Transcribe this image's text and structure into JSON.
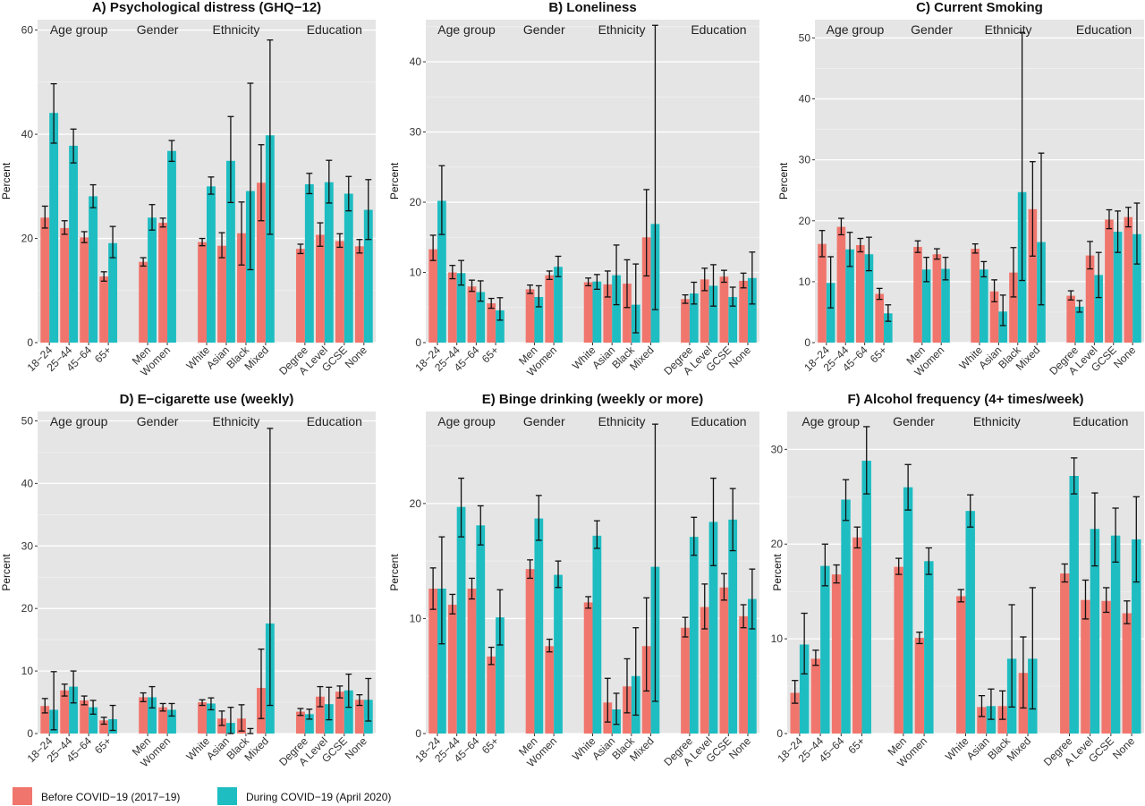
{
  "legend": [
    {
      "label": "Before COVID−19 (2017−19)",
      "color": "#F0766D"
    },
    {
      "label": "During COVID−19 (April 2020)",
      "color": "#1EBDC2"
    }
  ],
  "chart_data": [
    {
      "type": "bar",
      "title": "A) Psychological distress (GHQ−12)",
      "ylabel": "Percent",
      "ylim": [
        0,
        62
      ],
      "yticks": [
        0,
        20,
        40,
        60
      ],
      "groups": [
        {
          "label": "Age group",
          "categories": [
            "18−24",
            "25−44",
            "45−64",
            "65+"
          ]
        },
        {
          "label": "Gender",
          "categories": [
            "Men",
            "Women"
          ]
        },
        {
          "label": "Ethnicity",
          "categories": [
            "White",
            "Asian",
            "Black",
            "Mixed"
          ]
        },
        {
          "label": "Education",
          "categories": [
            "Degree",
            "A Level",
            "GCSE",
            "None"
          ]
        }
      ],
      "series": [
        {
          "name": "Before COVID−19 (2017−19)",
          "values": [
            24,
            22,
            20.2,
            12.7,
            15.5,
            23,
            19.3,
            18.6,
            21,
            30.7,
            18,
            20.7,
            19.5,
            18.5
          ],
          "lower": [
            22,
            20.8,
            19.2,
            11.8,
            14.7,
            22.2,
            18.6,
            16.3,
            14.9,
            23.4,
            17.1,
            18.5,
            18.3,
            17.2
          ],
          "upper": [
            26.2,
            23.4,
            21.3,
            13.6,
            16.3,
            23.9,
            20,
            21.1,
            27,
            38,
            18.9,
            23,
            20.9,
            19.8
          ]
        },
        {
          "name": "During COVID−19 (April 2020)",
          "values": [
            44.1,
            37.8,
            28.1,
            19.1,
            24,
            36.8,
            30,
            34.9,
            29.1,
            39.8,
            30.4,
            30.8,
            28.6,
            25.5
          ],
          "lower": [
            38.3,
            34.5,
            25.9,
            16.3,
            21.6,
            34.8,
            28.5,
            26.9,
            14,
            20.8,
            28.6,
            26.8,
            25.3,
            19.8
          ],
          "upper": [
            49.7,
            41,
            30.3,
            22.3,
            26.5,
            38.8,
            31.8,
            43.4,
            49.8,
            58.1,
            32.5,
            35,
            31.9,
            31.3
          ]
        }
      ]
    },
    {
      "type": "bar",
      "title": "B) Loneliness",
      "ylabel": "Percent",
      "ylim": [
        0,
        46
      ],
      "yticks": [
        0,
        10,
        20,
        30,
        40
      ],
      "groups": [
        {
          "label": "Age group",
          "categories": [
            "18−24",
            "25−44",
            "45−64",
            "65+"
          ]
        },
        {
          "label": "Gender",
          "categories": [
            "Men",
            "Women"
          ]
        },
        {
          "label": "Ethnicity",
          "categories": [
            "White",
            "Asian",
            "Black",
            "Mixed"
          ]
        },
        {
          "label": "Education",
          "categories": [
            "Degree",
            "A Level",
            "GCSE",
            "None"
          ]
        }
      ],
      "series": [
        {
          "name": "Before COVID−19 (2017−19)",
          "values": [
            13.3,
            10,
            8,
            5.6,
            7.6,
            9.6,
            8.6,
            8.3,
            8.4,
            15,
            6.2,
            9,
            9.4,
            8.8
          ],
          "lower": [
            11.7,
            9.1,
            7.3,
            4.9,
            7,
            9,
            8.1,
            6.5,
            5,
            9.5,
            5.6,
            7.4,
            8.6,
            7.8
          ],
          "upper": [
            15.3,
            11,
            8.9,
            6.3,
            8.2,
            10.2,
            9.2,
            10.2,
            11.8,
            21.8,
            6.8,
            10.6,
            10.3,
            9.9
          ]
        },
        {
          "name": "During COVID−19 (April 2020)",
          "values": [
            20.2,
            9.9,
            7.2,
            4.6,
            6.5,
            10.8,
            8.7,
            9.6,
            5.4,
            16.9,
            7,
            8.1,
            6.5,
            9.2
          ],
          "lower": [
            15.4,
            8.2,
            5.9,
            3.2,
            5.1,
            9.4,
            7.6,
            5.4,
            1.4,
            4.7,
            5.5,
            5.2,
            5.2,
            5.5
          ],
          "upper": [
            25.2,
            11.7,
            8.8,
            6.4,
            8.1,
            12.3,
            9.7,
            13.9,
            11.2,
            45.2,
            8.6,
            11.1,
            7.9,
            12.9
          ]
        }
      ]
    },
    {
      "type": "bar",
      "title": "C) Current Smoking",
      "ylabel": "Percent",
      "ylim": [
        0,
        53
      ],
      "yticks": [
        0,
        10,
        20,
        30,
        40,
        50
      ],
      "groups": [
        {
          "label": "Age group",
          "categories": [
            "18−24",
            "25−44",
            "45−64",
            "65+"
          ]
        },
        {
          "label": "Gender",
          "categories": [
            "Men",
            "Women"
          ]
        },
        {
          "label": "Ethnicity",
          "categories": [
            "White",
            "Asian",
            "Black",
            "Mixed"
          ]
        },
        {
          "label": "Education",
          "categories": [
            "Degree",
            "A Level",
            "GCSE",
            "None"
          ]
        }
      ],
      "series": [
        {
          "name": "Before COVID−19 (2017−19)",
          "values": [
            16.2,
            19,
            16,
            8,
            15.7,
            14.5,
            15.4,
            8.4,
            11.5,
            21.9,
            7.7,
            14.3,
            20.2,
            20.6
          ],
          "lower": [
            14.1,
            17.7,
            14.9,
            7.1,
            14.8,
            13.7,
            14.7,
            6.7,
            7.5,
            14.2,
            7,
            12.1,
            18.7,
            19
          ],
          "upper": [
            18.4,
            20.4,
            17.1,
            8.9,
            16.7,
            15.4,
            16.2,
            10.3,
            15.6,
            29.7,
            8.5,
            16.6,
            21.8,
            22.2
          ]
        },
        {
          "name": "During COVID−19 (April 2020)",
          "values": [
            9.8,
            15.3,
            14.5,
            4.8,
            12,
            12.1,
            12,
            5.1,
            24.7,
            16.5,
            5.9,
            11.1,
            18.2,
            17.8
          ],
          "lower": [
            5.7,
            12.5,
            11.8,
            3.5,
            10,
            10.3,
            10.8,
            2.8,
            10.2,
            6.2,
            5,
            7.4,
            14.8,
            12.9
          ],
          "upper": [
            14.1,
            18.1,
            17.3,
            6.2,
            14,
            14,
            13.3,
            7.8,
            50.9,
            31.1,
            6.9,
            14.8,
            21.6,
            22.9
          ]
        }
      ]
    },
    {
      "type": "bar",
      "title": "D) E−cigarette use (weekly)",
      "ylabel": "Percent",
      "ylim": [
        0,
        51.5
      ],
      "yticks": [
        0,
        10,
        20,
        30,
        40,
        50
      ],
      "groups": [
        {
          "label": "Age group",
          "categories": [
            "18−24",
            "25−44",
            "45−64",
            "65+"
          ]
        },
        {
          "label": "Gender",
          "categories": [
            "Men",
            "Women"
          ]
        },
        {
          "label": "Ethnicity",
          "categories": [
            "White",
            "Asian",
            "Black",
            "Mixed"
          ]
        },
        {
          "label": "Education",
          "categories": [
            "Degree",
            "A Level",
            "GCSE",
            "None"
          ]
        }
      ],
      "series": [
        {
          "name": "Before COVID−19 (2017−19)",
          "values": [
            4.4,
            6.9,
            5.3,
            2.1,
            5.8,
            4.2,
            5,
            2.4,
            2.4,
            7.3,
            3.5,
            5.9,
            6.7,
            5.4
          ],
          "lower": [
            3.3,
            6,
            4.6,
            1.5,
            5.1,
            3.6,
            4.5,
            1.3,
            0.4,
            2.4,
            2.9,
            4.3,
            5.7,
            4.5
          ],
          "upper": [
            5.6,
            7.9,
            6,
            2.6,
            6.5,
            4.8,
            5.4,
            3.6,
            4.6,
            13.5,
            4,
            7.5,
            7.6,
            6.2
          ]
        },
        {
          "name": "During COVID−19 (April 2020)",
          "values": [
            3.8,
            7.5,
            4.2,
            2.3,
            5.8,
            3.8,
            4.8,
            1.7,
            0,
            17.6,
            3.1,
            4.7,
            6.9,
            5.4
          ],
          "lower": [
            0.6,
            4.9,
            3.1,
            0.5,
            4.1,
            2.8,
            3.8,
            0,
            0,
            4.5,
            2.3,
            2.2,
            4.2,
            2
          ],
          "upper": [
            9.9,
            10,
            5.3,
            4.5,
            7.5,
            4.8,
            5.7,
            4.2,
            0.8,
            48.8,
            3.9,
            7.4,
            9.5,
            8.8
          ]
        }
      ]
    },
    {
      "type": "bar",
      "title": "E) Binge drinking (weekly or more)",
      "ylabel": "Percent",
      "ylim": [
        0,
        28
      ],
      "yticks": [
        0,
        10,
        20
      ],
      "groups": [
        {
          "label": "Age group",
          "categories": [
            "18−24",
            "25−44",
            "45−64",
            "65+"
          ]
        },
        {
          "label": "Gender",
          "categories": [
            "Men",
            "Women"
          ]
        },
        {
          "label": "Ethnicity",
          "categories": [
            "White",
            "Asian",
            "Black",
            "Mixed"
          ]
        },
        {
          "label": "Education",
          "categories": [
            "Degree",
            "A Level",
            "GCSE",
            "None"
          ]
        }
      ],
      "series": [
        {
          "name": "Before COVID−19 (2017−19)",
          "values": [
            12.6,
            11.2,
            12.6,
            6.7,
            14.3,
            7.6,
            11.4,
            2.7,
            4.1,
            7.6,
            9.2,
            11,
            12.7,
            10.2
          ],
          "lower": [
            10.8,
            10.4,
            11.7,
            6,
            13.5,
            7.1,
            10.9,
            1,
            1.8,
            3.7,
            8.4,
            9.1,
            11.6,
            9.2
          ],
          "upper": [
            14.4,
            12.1,
            13.5,
            7.5,
            15.1,
            8.2,
            11.9,
            4.8,
            6.5,
            11.8,
            10.1,
            13,
            13.9,
            11.2
          ]
        },
        {
          "name": "During COVID−19 (April 2020)",
          "values": [
            12.6,
            19.7,
            18.1,
            10.1,
            18.7,
            13.8,
            17.2,
            2.1,
            5,
            14.5,
            17.1,
            18.4,
            18.6,
            11.7
          ],
          "lower": [
            7.8,
            17.1,
            16.4,
            7.7,
            16.8,
            12.7,
            16.1,
            0.8,
            1.6,
            2.8,
            15.5,
            14.6,
            15.9,
            9.1
          ],
          "upper": [
            17.1,
            22.2,
            19.8,
            12.5,
            20.7,
            15,
            18.5,
            3.5,
            9.2,
            26.9,
            18.8,
            22.2,
            21.3,
            14.3
          ]
        }
      ]
    },
    {
      "type": "bar",
      "title": "F) Alcohol frequency (4+ times/week)",
      "ylabel": "Percent",
      "ylim": [
        0,
        34
      ],
      "yticks": [
        0,
        10,
        20,
        30
      ],
      "groups": [
        {
          "label": "Age group",
          "categories": [
            "18−24",
            "25−44",
            "45−64",
            "65+"
          ]
        },
        {
          "label": "Gender",
          "categories": [
            "Men",
            "Women"
          ]
        },
        {
          "label": "Ethnicity",
          "categories": [
            "White",
            "Asian",
            "Black",
            "Mixed"
          ]
        },
        {
          "label": "Education",
          "categories": [
            "Degree",
            "A Level",
            "GCSE",
            "None"
          ]
        }
      ],
      "series": [
        {
          "name": "Before COVID−19 (2017−19)",
          "values": [
            4.3,
            7.9,
            16.8,
            20.7,
            17.6,
            10.1,
            14.5,
            2.8,
            2.9,
            6.4,
            16.9,
            14.1,
            14,
            12.7
          ],
          "lower": [
            3.2,
            7.2,
            15.9,
            19.6,
            16.8,
            9.5,
            13.9,
            1.8,
            1.5,
            2.7,
            16,
            12.1,
            12.8,
            11.6
          ],
          "upper": [
            5.6,
            8.8,
            17.8,
            21.8,
            18.5,
            10.7,
            15.2,
            4,
            4.5,
            10.2,
            17.9,
            16.2,
            15.4,
            14
          ]
        },
        {
          "name": "During COVID−19 (April 2020)",
          "values": [
            9.4,
            17.7,
            24.7,
            28.8,
            26,
            18.2,
            23.5,
            2.9,
            7.9,
            7.9,
            27.2,
            21.6,
            20.9,
            20.5
          ],
          "lower": [
            6.3,
            15.6,
            22.5,
            25.3,
            23.6,
            16.8,
            21.8,
            1.5,
            2.8,
            2.6,
            25.3,
            17.7,
            18.1,
            16
          ],
          "upper": [
            12.7,
            20,
            26.8,
            32.4,
            28.4,
            19.6,
            25.2,
            4.7,
            13.6,
            15.4,
            29.1,
            25.4,
            23.8,
            25
          ]
        }
      ]
    }
  ]
}
